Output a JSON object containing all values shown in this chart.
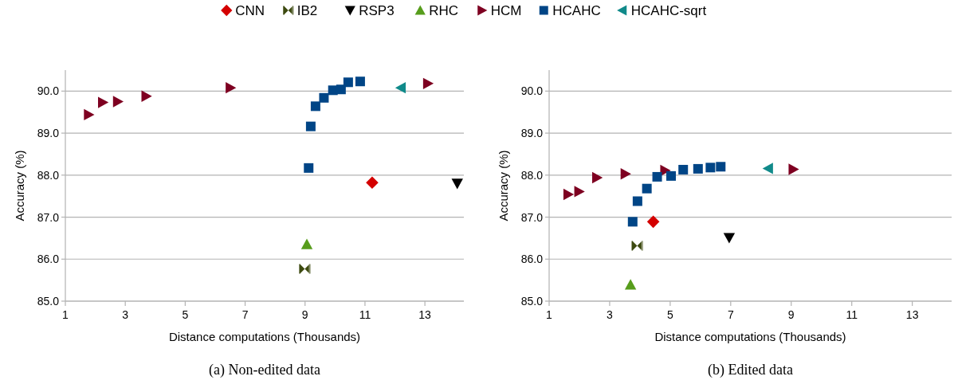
{
  "chart_data": [
    {
      "type": "scatter",
      "title": "(a) Non-edited data",
      "xlabel": "Distance computations (Thousands)",
      "ylabel": "Accuracy (%)",
      "xlim": [
        1,
        14.3
      ],
      "xticks": [
        1,
        3,
        5,
        7,
        9,
        11,
        13
      ],
      "ylim": [
        85,
        90.5
      ],
      "yticks": [
        {
          "value": 85,
          "label": "85.0"
        },
        {
          "value": 86,
          "label": "86.0"
        },
        {
          "value": 87,
          "label": "87.0"
        },
        {
          "value": 88,
          "label": "88.0"
        },
        {
          "value": 89,
          "label": "89.0"
        },
        {
          "value": 90,
          "label": "90.0"
        }
      ],
      "grid": "y",
      "legend": "top",
      "series": [
        {
          "name": "CNN",
          "color": "#d40000",
          "marker": "diamond",
          "x": [
            11.24
          ],
          "values": [
            87.82
          ]
        },
        {
          "name": "IB2",
          "color": "#3d4a10",
          "x": [
            8.99
          ],
          "values": [
            85.77
          ]
        },
        {
          "name": "RSP3",
          "color": "#000000",
          "marker": "triangle-down",
          "x": [
            14.08
          ],
          "values": [
            87.8
          ]
        },
        {
          "name": "RHC",
          "color": "#579d1c",
          "marker": "triangle",
          "x": [
            9.06
          ],
          "values": [
            86.35
          ]
        },
        {
          "name": "HCM",
          "color": "#7e0021",
          "marker": "triangle-right",
          "x": [
            1.78,
            2.25,
            2.75,
            3.7,
            6.51,
            13.1
          ],
          "values": [
            89.44,
            89.73,
            89.75,
            89.88,
            90.08,
            90.18
          ]
        },
        {
          "name": "HCAHC",
          "color": "#004586",
          "marker": "square",
          "x": [
            9.12,
            9.19,
            9.35,
            9.63,
            9.93,
            10.2,
            10.44,
            10.84
          ],
          "values": [
            88.17,
            89.16,
            89.64,
            89.84,
            90.02,
            90.04,
            90.21,
            90.23
          ]
        },
        {
          "name": "HCAHC-sqrt",
          "color": "#108a8a",
          "marker": "triangle-left",
          "x": [
            12.2
          ],
          "values": [
            90.08
          ]
        }
      ]
    },
    {
      "type": "scatter",
      "title": "(b) Edited data",
      "xlabel": "Distance computations (Thousands)",
      "ylabel": "Accuracy (%)",
      "xlim": [
        1,
        14.3
      ],
      "xticks": [
        1,
        3,
        5,
        7,
        9,
        11,
        13
      ],
      "ylim": [
        85,
        90.5
      ],
      "yticks": [
        {
          "value": 85,
          "label": "85.0"
        },
        {
          "value": 86,
          "label": "86.0"
        },
        {
          "value": 87,
          "label": "87.0"
        },
        {
          "value": 88,
          "label": "88.0"
        },
        {
          "value": 89,
          "label": "89.0"
        },
        {
          "value": 90,
          "label": "90.0"
        }
      ],
      "grid": "y",
      "series": [
        {
          "color": "#d40000",
          "marker": "diamond",
          "x": [
            4.44
          ],
          "values": [
            86.89
          ]
        },
        {
          "color": "#3d4a10",
          "x": [
            3.91
          ],
          "values": [
            86.32
          ]
        },
        {
          "color": "#000000",
          "marker": "triangle-down",
          "x": [
            6.95
          ],
          "values": [
            86.51
          ]
        },
        {
          "color": "#579d1c",
          "marker": "triangle",
          "x": [
            3.69
          ],
          "values": [
            85.39
          ]
        },
        {
          "color": "#7e0021",
          "marker": "triangle-right",
          "x": [
            1.63,
            1.99,
            2.58,
            3.52,
            4.83,
            9.07
          ],
          "values": [
            87.54,
            87.61,
            87.94,
            88.03,
            88.11,
            88.14
          ]
        },
        {
          "color": "#004586",
          "marker": "square",
          "x": [
            3.76,
            3.92,
            4.23,
            4.57,
            5.03,
            5.43,
            5.92,
            6.33,
            6.67
          ],
          "values": [
            86.89,
            87.38,
            87.68,
            87.96,
            87.98,
            88.13,
            88.15,
            88.18,
            88.2
          ]
        },
        {
          "color": "#108a8a",
          "marker": "triangle-left",
          "x": [
            8.24
          ],
          "values": [
            88.16
          ]
        }
      ]
    }
  ]
}
